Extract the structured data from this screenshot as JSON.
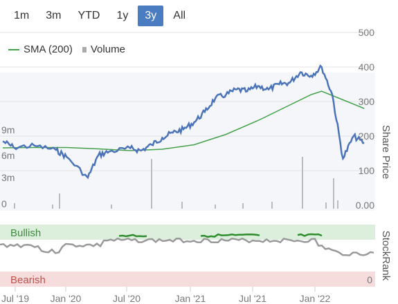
{
  "range_tabs": [
    {
      "label": "1m",
      "active": false
    },
    {
      "label": "3m",
      "active": false
    },
    {
      "label": "YTD",
      "active": false
    },
    {
      "label": "1y",
      "active": false
    },
    {
      "label": "3y",
      "active": true
    },
    {
      "label": "All",
      "active": false
    }
  ],
  "legend": {
    "sma_label": "SMA (200)",
    "volume_label": "Volume"
  },
  "colors": {
    "price": "#4a73b8",
    "sma": "#44a04a",
    "volume": "#bbbbbb",
    "bullish": "#dcefdc",
    "bearish": "#f6dcdc",
    "active_tab": "#4a7cc1"
  },
  "chart_data": [
    {
      "type": "line",
      "ylabel": "Share Price",
      "y_right_ticks": [
        "500",
        "400",
        "300",
        "200",
        "100",
        "0.00"
      ],
      "ylim": [
        0,
        500
      ],
      "volume_ticks": [
        "9m",
        "6m",
        "3m",
        "0"
      ],
      "x_ticks": [
        "Jul '19",
        "Jan '20",
        "Jul '20",
        "Jan '21",
        "Jul '21",
        "Jan '22"
      ],
      "series": [
        {
          "name": "SMA (200)",
          "x": [
            "Jul '19",
            "Oct '19",
            "Jan '20",
            "Apr '20",
            "Jul '20",
            "Oct '20",
            "Jan '21",
            "Apr '21",
            "Jul '21",
            "Oct '21",
            "Dec '21",
            "Jan '22",
            "Mar '22",
            "May '22"
          ],
          "values": [
            166,
            167,
            167,
            163,
            158,
            162,
            175,
            205,
            245,
            290,
            320,
            330,
            305,
            280
          ]
        },
        {
          "name": "Price",
          "x": [
            "Jul '19",
            "Aug '19",
            "Oct '19",
            "Dec '19",
            "Jan '20",
            "Mar '20",
            "Apr '20",
            "May '20",
            "Jul '20",
            "Aug '20",
            "Sep '20",
            "Oct '20",
            "Nov '20",
            "Dec '20",
            "Jan '21",
            "Feb '21",
            "Mar '21",
            "Apr '21",
            "May '21",
            "Jun '21",
            "Jul '21",
            "Aug '21",
            "Sep '21",
            "Oct '21",
            "Nov '21",
            "Dec '21",
            "Jan '22",
            "Feb '22",
            "Mar '22",
            "Apr '22",
            "May '22"
          ],
          "values": [
            185,
            168,
            172,
            160,
            140,
            80,
            145,
            155,
            165,
            158,
            175,
            195,
            210,
            220,
            240,
            270,
            310,
            320,
            335,
            330,
            345,
            335,
            350,
            355,
            385,
            375,
            400,
            320,
            135,
            200,
            180
          ]
        }
      ]
    },
    {
      "type": "line",
      "ylabel": "StockRank",
      "zones": [
        "Bullish",
        "Bearish"
      ],
      "y_tick": "0"
    }
  ]
}
